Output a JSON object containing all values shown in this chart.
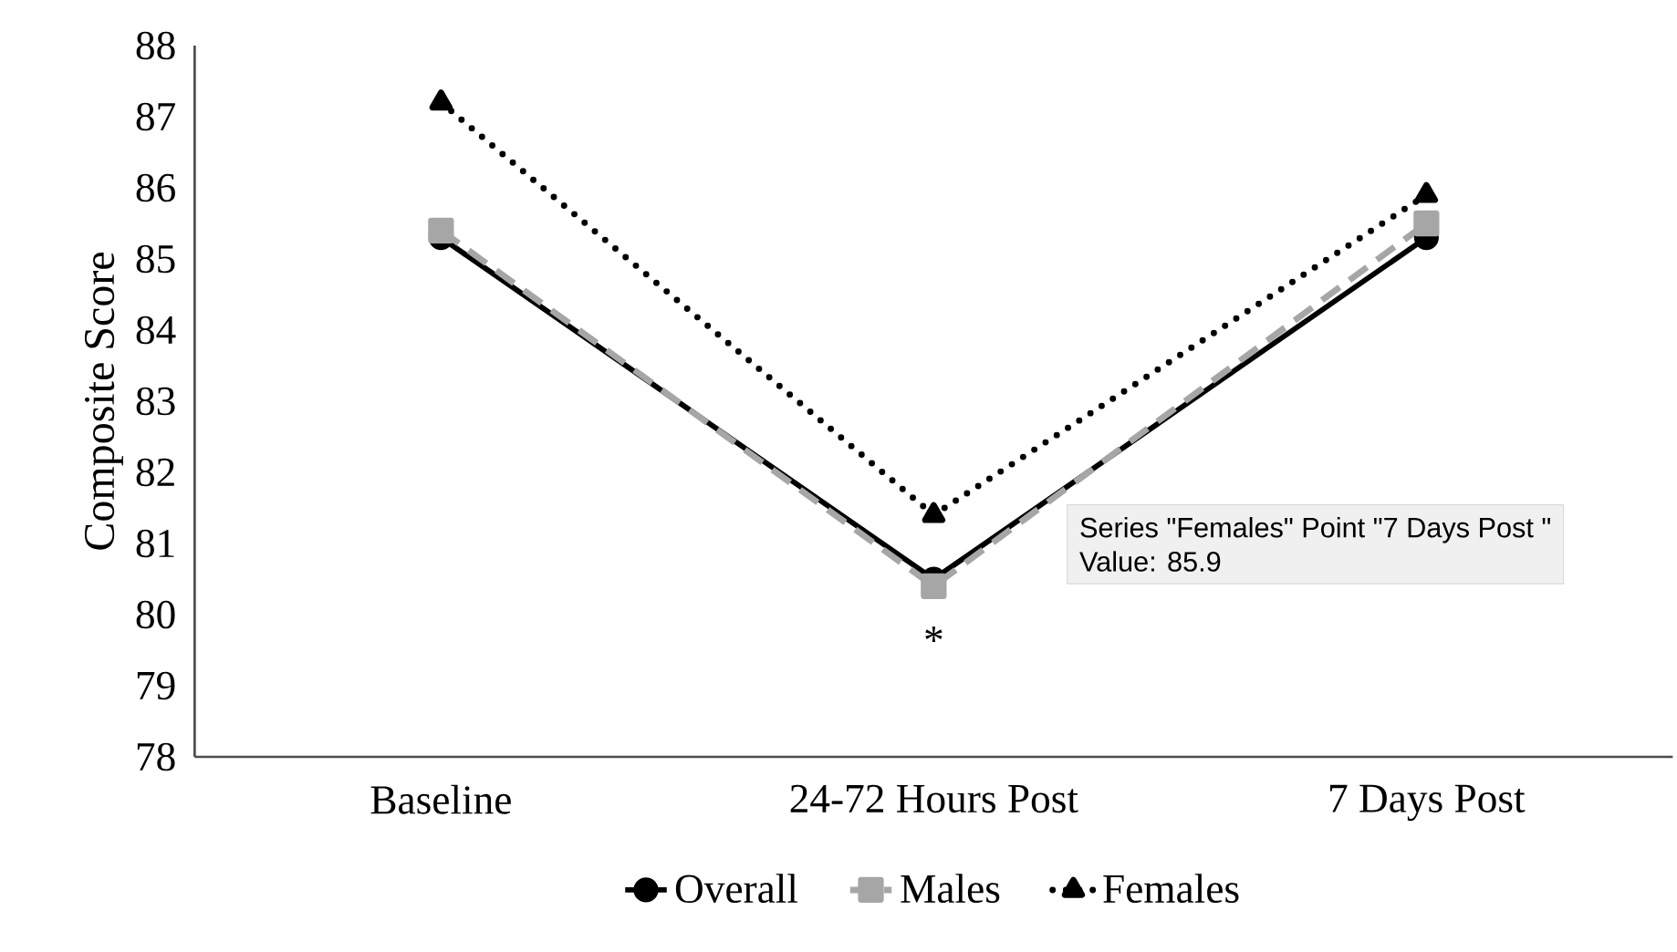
{
  "chart_data": {
    "type": "line",
    "ylabel": "Composite Score",
    "categories": [
      "Baseline",
      "24-72 Hours Post",
      "7 Days Post"
    ],
    "series": [
      {
        "name": "Overall",
        "color": "#000000",
        "values": [
          85.3,
          80.5,
          85.3
        ],
        "marker": "circle",
        "line_style": "solid"
      },
      {
        "name": "Males",
        "color": "#a6a6a6",
        "values": [
          85.4,
          80.4,
          85.5
        ],
        "marker": "square",
        "line_style": "dashed"
      },
      {
        "name": "Females",
        "color": "#000000",
        "values": [
          87.2,
          81.4,
          85.9
        ],
        "marker": "triangle",
        "line_style": "dotted"
      }
    ],
    "ylim": [
      78,
      88
    ],
    "yticks": [
      78,
      79,
      80,
      81,
      82,
      83,
      84,
      85,
      86,
      87,
      88
    ],
    "grid": false,
    "legend": "bottom",
    "annotations": [
      "*",
      "Series \"Females\" Point \"7 Days Post \"",
      "Value: 85.9"
    ]
  }
}
